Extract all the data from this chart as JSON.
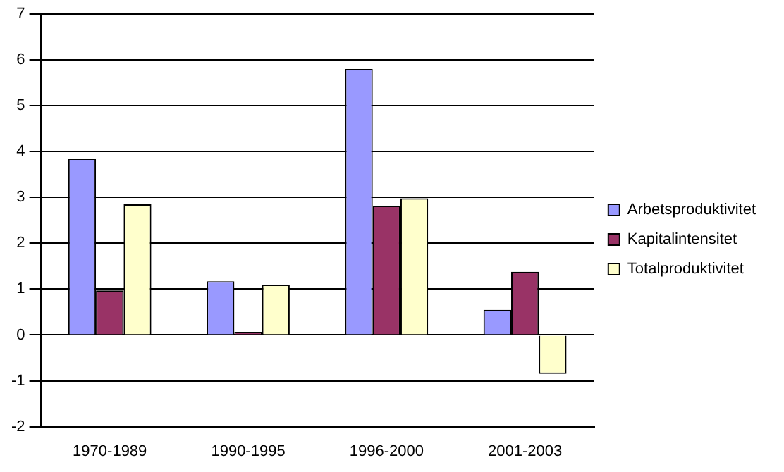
{
  "chart_data": {
    "type": "bar",
    "categories": [
      "1970-1989",
      "1990-1995",
      "1996-2000",
      "2001-2003"
    ],
    "series": [
      {
        "name": "Arbetsproduktivitet",
        "color": "#9999ff",
        "values": [
          3.85,
          1.17,
          5.8,
          0.55
        ]
      },
      {
        "name": "Kapitalintensitet",
        "color": "#993366",
        "values": [
          0.97,
          0.07,
          2.82,
          1.38
        ]
      },
      {
        "name": "Totalproduktivitet",
        "color": "#ffffcc",
        "values": [
          2.85,
          1.1,
          2.98,
          -0.85
        ]
      }
    ],
    "ylim": [
      -2,
      7
    ],
    "yticks": [
      -2,
      -1,
      0,
      1,
      2,
      3,
      4,
      5,
      6,
      7
    ],
    "grid": "y",
    "legend": "right"
  }
}
